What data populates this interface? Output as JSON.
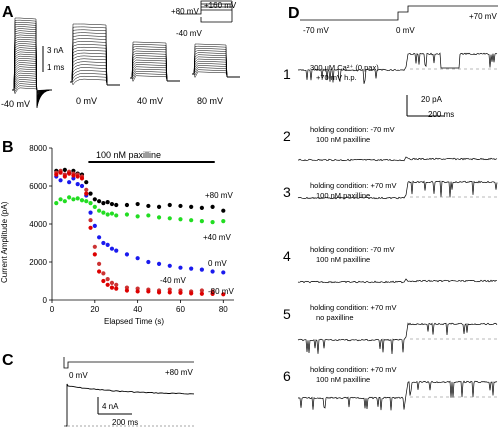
{
  "panels": {
    "A": {
      "letter": "A",
      "protocol_top": "+160 mV",
      "protocol_hold_top": "+80 mV",
      "protocol_hold_bottom": "-40 mV",
      "scale_current": "3 nA",
      "scale_time": "1 ms",
      "voltages": [
        "-40 mV",
        "0 mV",
        "40 mV",
        "80 mV"
      ]
    },
    "B": {
      "letter": "B",
      "drug_bar": "100 nM paxilline",
      "xlabel": "Elapsed Time (s)",
      "ylabel": "Current Amplitude (pA)",
      "series_labels": [
        "+80 mV",
        "+40 mV",
        "0 mV",
        "-40 mV",
        "-80 mV"
      ]
    },
    "C": {
      "letter": "C",
      "v_start": "0 mV",
      "v_step": "+80 mV",
      "scale_current": "4 nA",
      "scale_time": "200 ms"
    },
    "D": {
      "letter": "D",
      "protocol_hold": "-70 mV",
      "protocol_mid": "0 mV",
      "protocol_step": "+70 mV",
      "scale_current": "20 pA",
      "scale_time": "200 ms",
      "rows": [
        {
          "num": "1",
          "line1": "300 µM Ca²⁺ (0 pax)",
          "line2": "+70 mV h.p."
        },
        {
          "num": "2",
          "line1": "holding condition: -70 mV",
          "line2": "100 nM paxilline"
        },
        {
          "num": "3",
          "line1": "holding condition: +70 mV",
          "line2": "100 nM paxilline"
        },
        {
          "num": "4",
          "line1": "holding condition: -70 mV",
          "line2": "100 nM paxilline"
        },
        {
          "num": "5",
          "line1": "holding condition: +70 mV",
          "line2": "no paxilline"
        },
        {
          "num": "6",
          "line1": "holding condition: +70 mV",
          "line2": "100 nM paxilline"
        }
      ]
    }
  },
  "chart_data": {
    "type": "scatter",
    "title": "",
    "xlabel": "Elapsed Time (s)",
    "ylabel": "Current Amplitude (pA)",
    "xlim": [
      0,
      85
    ],
    "ylim": [
      0,
      8000
    ],
    "x_ticks": [
      0,
      20,
      40,
      60,
      80
    ],
    "y_ticks": [
      0,
      2000,
      4000,
      6000,
      8000
    ],
    "grid": false,
    "annotation": "100 nM paxilline",
    "annotation_range": [
      17,
      76
    ],
    "series": [
      {
        "name": "+80 mV",
        "color": "#000000",
        "x": [
          2,
          4,
          6,
          8,
          10,
          12,
          14,
          16,
          18,
          20,
          22,
          24,
          26,
          28,
          30,
          35,
          40,
          45,
          50,
          55,
          60,
          65,
          70,
          75,
          80
        ],
        "y": [
          6800,
          6750,
          6850,
          6700,
          6800,
          6650,
          6600,
          6200,
          5600,
          5300,
          5200,
          5100,
          5150,
          5050,
          5000,
          5000,
          5050,
          4950,
          4900,
          5000,
          4950,
          4900,
          4850,
          4900,
          4700
        ]
      },
      {
        "name": "+40 mV",
        "color": "#22dd22",
        "x": [
          2,
          4,
          6,
          8,
          10,
          12,
          14,
          16,
          18,
          20,
          22,
          24,
          26,
          28,
          30,
          35,
          40,
          45,
          50,
          55,
          60,
          65,
          70,
          75,
          80
        ],
        "y": [
          5100,
          5300,
          5200,
          5400,
          5300,
          5350,
          5250,
          5200,
          5100,
          4900,
          4700,
          4600,
          4500,
          4550,
          4450,
          4500,
          4400,
          4450,
          4350,
          4300,
          4250,
          4200,
          4150,
          4100,
          4150
        ]
      },
      {
        "name": "0 mV",
        "color": "#1a1aee",
        "x": [
          2,
          4,
          6,
          8,
          10,
          12,
          14,
          16,
          18,
          20,
          22,
          24,
          26,
          28,
          30,
          35,
          40,
          45,
          50,
          55,
          60,
          65,
          70,
          75,
          80
        ],
        "y": [
          6500,
          6300,
          6600,
          6200,
          6400,
          6100,
          6000,
          5500,
          4600,
          3900,
          3300,
          3000,
          2900,
          2700,
          2600,
          2400,
          2200,
          2000,
          1900,
          1800,
          1700,
          1650,
          1600,
          1500,
          1450
        ]
      },
      {
        "name": "-40 mV",
        "color": "#cc3333",
        "x": [
          2,
          4,
          6,
          8,
          10,
          12,
          14,
          16,
          18,
          20,
          22,
          24,
          26,
          28,
          30,
          35,
          40,
          45,
          50,
          55,
          60,
          65,
          70,
          75
        ],
        "y": [
          6700,
          6800,
          6600,
          6750,
          6650,
          6600,
          6500,
          5800,
          4200,
          2800,
          1900,
          1400,
          1100,
          900,
          800,
          650,
          600,
          550,
          500,
          550,
          500,
          450,
          500,
          450
        ]
      },
      {
        "name": "-80 mV",
        "color": "#dd0000",
        "x": [
          2,
          4,
          6,
          8,
          10,
          12,
          14,
          16,
          18,
          20,
          22,
          24,
          26,
          28,
          30,
          35,
          40,
          45,
          50,
          55,
          60,
          65,
          70,
          75,
          80
        ],
        "y": [
          6600,
          6700,
          6500,
          6650,
          6550,
          6500,
          6400,
          5600,
          3800,
          2400,
          1500,
          1000,
          800,
          650,
          600,
          500,
          450,
          450,
          400,
          400,
          380,
          350,
          330,
          320,
          300
        ]
      }
    ]
  }
}
